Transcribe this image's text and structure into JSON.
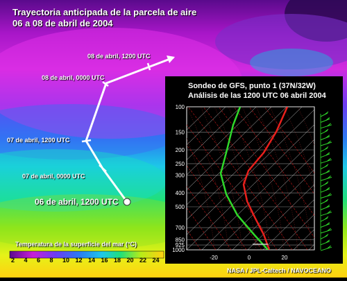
{
  "title": {
    "line1": "Trayectoria anticipada de la parcela de aire",
    "line2": "06 a 08 de abril de 2004"
  },
  "trajectory": {
    "labels": [
      "08 de abril, 1200  UTC",
      "08 de abril, 0000  UTC",
      "07 de abril, 1200  UTC",
      "07 de abril, 0000  UTC",
      "06 de abril, 1200  UTC"
    ],
    "path_color": "#ffffff"
  },
  "sounding": {
    "title_line1": "Sondeo de GFS, punto 1 (37N/32W)",
    "title_line2": "Análisis de las 1200 UTC  06 abril 2004",
    "pressure_labels": [
      "100",
      "150",
      "200",
      "250",
      "300",
      "400",
      "500",
      "700",
      "850",
      "925",
      "1000"
    ],
    "temperature_labels": [
      "-20",
      "0",
      "20"
    ],
    "temperature_color": "#e8201c",
    "dewpoint_color": "#2fd82a",
    "wind_barb_color": "#2fd82a"
  },
  "legend": {
    "title": "Temperatura de la superficie del mar (°C)",
    "ticks": [
      "2",
      "4",
      "6",
      "8",
      "10",
      "12",
      "14",
      "16",
      "18",
      "20",
      "22",
      "24"
    ]
  },
  "credit": "NASA / JPL-Caltech / NAVOCEANO"
}
